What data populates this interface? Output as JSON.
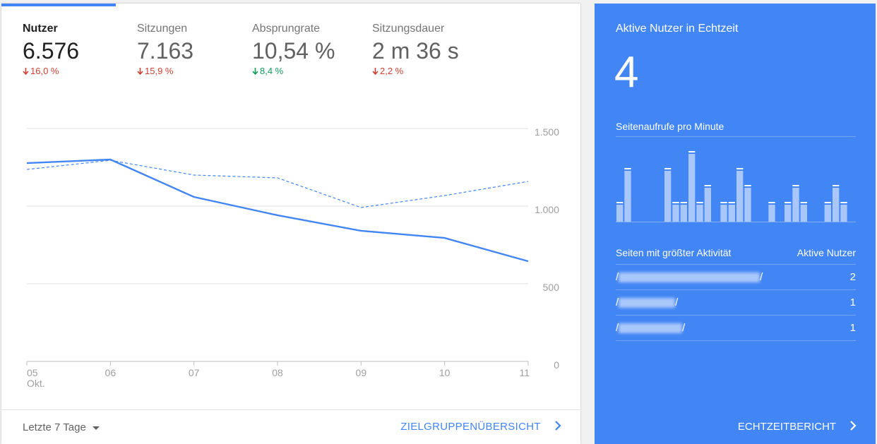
{
  "tabs": [
    {
      "name": "Nutzer",
      "value": "6.576",
      "change": "16,0 %",
      "direction": "down",
      "trend_color": "#d23f31",
      "active": true
    },
    {
      "name": "Sitzungen",
      "value": "7.163",
      "change": "15,9 %",
      "direction": "down",
      "trend_color": "#d23f31",
      "active": false
    },
    {
      "name": "Absprungrate",
      "value": "10,54 %",
      "change": "8,4 %",
      "direction": "down",
      "trend_color": "#0f9d58",
      "active": false
    },
    {
      "name": "Sitzungsdauer",
      "value": "2 m 36 s",
      "change": "2,2 %",
      "direction": "down",
      "trend_color": "#d23f31",
      "active": false
    }
  ],
  "chart_data": [
    {
      "type": "line",
      "categories": [
        "05",
        "06",
        "07",
        "08",
        "09",
        "10",
        "11"
      ],
      "month_label": "Okt.",
      "ylim": [
        0,
        1500
      ],
      "yticks": [
        0,
        500,
        {
          "value": 1000,
          "label": "1.000"
        },
        {
          "value": 1500,
          "label": "1.500"
        }
      ],
      "grid": true,
      "series": [
        {
          "color": "#4285f4",
          "style": "solid",
          "values": [
            1277,
            1300,
            1059,
            941,
            841,
            795,
            645
          ]
        },
        {
          "color": "#4285f4",
          "style": "dashed",
          "values": [
            1236,
            1295,
            1200,
            1182,
            991,
            1068,
            1159
          ]
        }
      ]
    },
    {
      "type": "bar",
      "title": "Seitenaufrufe pro Minute",
      "color": "#a9c7fa",
      "values": [
        1,
        3,
        0,
        0,
        0,
        0,
        3,
        1,
        1,
        4,
        1,
        2,
        0,
        1,
        1,
        3,
        2,
        0,
        0,
        1,
        0,
        1,
        2,
        1,
        0,
        0,
        1,
        2,
        1,
        0
      ]
    }
  ],
  "footer": {
    "range": "Letzte 7 Tage",
    "link": "ZIELGRUPPENÜBERSICHT"
  },
  "realtime": {
    "title": "Aktive Nutzer in Echtzeit",
    "active_users": 4,
    "table": {
      "headers": [
        "Seiten mit größter Aktivität",
        "Aktive Nutzer"
      ],
      "rows": [
        {
          "page_start": "/",
          "page_end": "/",
          "users": 2
        },
        {
          "page_start": "/",
          "page_end": "/",
          "users": 1
        },
        {
          "page_start": "/",
          "page_end": "/",
          "users": 1
        }
      ]
    },
    "link": "ECHTZEITBERICHT"
  }
}
